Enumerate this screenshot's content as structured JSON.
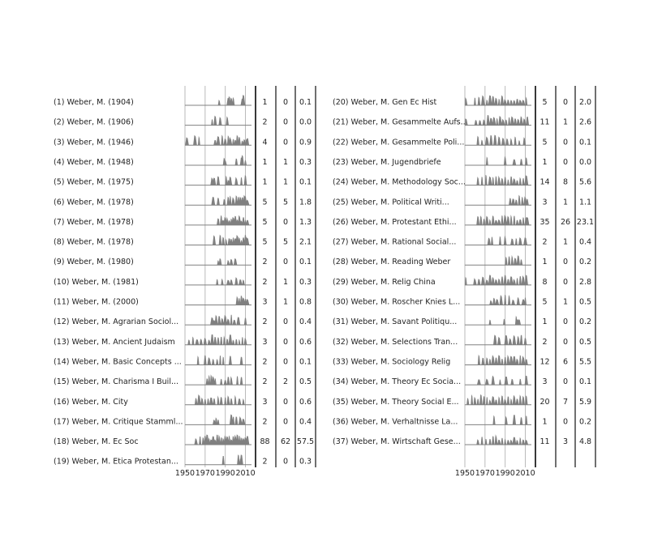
{
  "chart_data": {
    "type": "area",
    "x_ticks": [
      1950,
      1970,
      1990,
      2010
    ],
    "x_range": [
      1950,
      2016
    ],
    "colors": {
      "area": "#808080",
      "line": "#808080",
      "grid": "#b3b3b3",
      "frame": "#222222"
    },
    "panels": [
      {
        "rows": [
          {
            "label": "(1) Weber, M. (1904)",
            "c1": "1",
            "c2": "0",
            "c3": "0.1",
            "events": [
              1984,
              1993,
              1994,
              1996,
              1998,
              2007,
              2008
            ]
          },
          {
            "label": "(2) Weber, M. (1906)",
            "c1": "2",
            "c2": "0",
            "c3": "0.0",
            "events": [
              1977,
              1980,
              1985,
              1992
            ]
          },
          {
            "label": "(3) Weber, M. (1946)",
            "c1": "4",
            "c2": "0",
            "c3": "0.9",
            "events": [
              1952,
              1960,
              1964,
              1980,
              1983,
              1987,
              1990,
              1993,
              1995,
              1998,
              2000,
              2002,
              2004,
              2007,
              2009,
              2011,
              2012
            ]
          },
          {
            "label": "(4) Weber, M. (1948)",
            "c1": "1",
            "c2": "1",
            "c3": "0.3",
            "events": [
              1989,
              1990,
              2001,
              2006,
              2007,
              2010
            ]
          },
          {
            "label": "(5) Weber, M. (1975)",
            "c1": "1",
            "c2": "1",
            "c3": "0.1",
            "events": [
              1977,
              1979,
              1983,
              1991,
              1993,
              1995,
              2001,
              2006,
              2010
            ]
          },
          {
            "label": "(6) Weber, M. (1978)",
            "c1": "5",
            "c2": "5",
            "c3": "1.8",
            "events": [
              1978,
              1983,
              1989,
              1993,
              1995,
              1998,
              2001,
              2003,
              2005,
              2007,
              2009,
              2010,
              2012
            ]
          },
          {
            "label": "(7) Weber, M. (1978)",
            "c1": "5",
            "c2": "0",
            "c3": "1.3",
            "events": [
              1983,
              1986,
              1988,
              1990,
              1992,
              1994,
              1996,
              1998,
              2000,
              2002,
              2004,
              2006,
              2008,
              2010,
              2012
            ]
          },
          {
            "label": "(8) Weber, M. (1978)",
            "c1": "5",
            "c2": "5",
            "c3": "2.1",
            "events": [
              1979,
              1985,
              1988,
              1991,
              1994,
              1996,
              1998,
              2000,
              2002,
              2004,
              2006,
              2008,
              2010,
              2011,
              2012
            ]
          },
          {
            "label": "(9) Weber, M. (1980)",
            "c1": "2",
            "c2": "0",
            "c3": "0.1",
            "events": [
              1983,
              1985,
              1993,
              1996,
              2000
            ]
          },
          {
            "label": "(10) Weber, M. (1981)",
            "c1": "2",
            "c2": "1",
            "c3": "0.3",
            "events": [
              1982,
              1987,
              1993,
              1996,
              2001,
              2005,
              2008
            ]
          },
          {
            "label": "(11) Weber, M. (2000)",
            "c1": "3",
            "c2": "1",
            "c3": "0.8",
            "events": [
              2002,
              2004,
              2006,
              2008,
              2010,
              2012
            ]
          },
          {
            "label": "(12) Weber, M. Agrarian Sociol...",
            "c1": "2",
            "c2": "0",
            "c3": "0.4",
            "events": [
              1977,
              1979,
              1981,
              1984,
              1987,
              1990,
              1993,
              1996,
              1999,
              2003,
              2010
            ]
          },
          {
            "label": "(13) Weber, M. Ancient Judaism",
            "c1": "3",
            "c2": "0",
            "c3": "0.6",
            "events": [
              1954,
              1958,
              1962,
              1966,
              1970,
              1974,
              1977,
              1980,
              1983,
              1986,
              1989,
              1992,
              1995,
              1998,
              2001,
              2004,
              2007,
              2010
            ]
          },
          {
            "label": "(14) Weber, M. Basic Concepts ...",
            "c1": "2",
            "c2": "0",
            "c3": "0.1",
            "events": [
              1963,
              1970,
              1974,
              1978,
              1982,
              1985,
              1988,
              1995,
              2006
            ]
          },
          {
            "label": "(15) Weber, M. Charisma I Buil...",
            "c1": "2",
            "c2": "2",
            "c3": "0.5",
            "events": [
              1972,
              1974,
              1976,
              1978,
              1980,
              1986,
              1990,
              1993,
              1996,
              2002,
              2006
            ]
          },
          {
            "label": "(16) Weber, M. City",
            "c1": "3",
            "c2": "0",
            "c3": "0.6",
            "events": [
              1961,
              1964,
              1967,
              1970,
              1973,
              1976,
              1979,
              1983,
              1986,
              1990,
              1993,
              1996,
              2000,
              2004,
              2008
            ]
          },
          {
            "label": "(17) Weber, M. Critique Stamml...",
            "c1": "2",
            "c2": "0",
            "c3": "0.4",
            "events": [
              1979,
              1981,
              1983,
              1996,
              1998,
              2001,
              2005,
              2008
            ]
          },
          {
            "label": "(18) Weber, M. Ec Soc",
            "c1": "88",
            "c2": "62",
            "c3": "57.5",
            "events": [
              1961,
              1965,
              1968,
              1970,
              1972,
              1974,
              1976,
              1978,
              1980,
              1982,
              1984,
              1986,
              1988,
              1990,
              1992,
              1994,
              1996,
              1998,
              2000,
              2002,
              2004,
              2006,
              2008,
              2010,
              2012
            ]
          },
          {
            "label": "(19) Weber, M. Etica Protestan...",
            "c1": "2",
            "c2": "0",
            "c3": "0.3",
            "events": [
              1988,
              2003,
              2005,
              2006
            ]
          }
        ]
      },
      {
        "rows": [
          {
            "label": "(20) Weber, M. Gen Ec Hist",
            "c1": "5",
            "c2": "0",
            "c3": "2.0",
            "events": [
              1951,
              1960,
              1964,
              1968,
              1972,
              1975,
              1978,
              1981,
              1984,
              1987,
              1990,
              1993,
              1996,
              1999,
              2002,
              2005,
              2008,
              2011
            ]
          },
          {
            "label": "(21) Weber, M. Gesammelte Aufs...",
            "c1": "11",
            "c2": "1",
            "c3": "2.6",
            "events": [
              1951,
              1961,
              1965,
              1969,
              1973,
              1976,
              1979,
              1982,
              1985,
              1988,
              1991,
              1994,
              1997,
              2000,
              2003,
              2006,
              2009,
              2012
            ]
          },
          {
            "label": "(22) Weber, M. Gesammelte Poli...",
            "c1": "5",
            "c2": "0",
            "c3": "0.1",
            "events": [
              1963,
              1967,
              1972,
              1976,
              1980,
              1984,
              1988,
              1992,
              1996,
              2000,
              2004,
              2009
            ]
          },
          {
            "label": "(23) Weber, M. Jugendbriefe",
            "c1": "1",
            "c2": "0",
            "c3": "0.0",
            "events": [
              1972,
              1990,
              1999,
              2006,
              2011
            ]
          },
          {
            "label": "(24) Weber, M. Methodology Soc...",
            "c1": "14",
            "c2": "8",
            "c3": "5.6",
            "events": [
              1963,
              1967,
              1971,
              1975,
              1978,
              1981,
              1984,
              1987,
              1990,
              1993,
              1996,
              1999,
              2002,
              2005,
              2008,
              2011
            ]
          },
          {
            "label": "(25) Weber, M. Political Writi...",
            "c1": "3",
            "c2": "1",
            "c3": "1.1",
            "events": [
              1995,
              1998,
              2001,
              2004,
              2007,
              2010,
              2012
            ]
          },
          {
            "label": "(26) Weber, M. Protestant Ethi...",
            "c1": "35",
            "c2": "26",
            "c3": "23.1",
            "events": [
              1963,
              1966,
              1969,
              1972,
              1975,
              1978,
              1981,
              1984,
              1987,
              1990,
              1993,
              1996,
              1999,
              2002,
              2005,
              2008,
              2011,
              2012
            ]
          },
          {
            "label": "(27) Weber, M. Rational Social...",
            "c1": "2",
            "c2": "1",
            "c3": "0.4",
            "events": [
              1974,
              1977,
              1985,
              1990,
              1997,
              2001,
              2005,
              2010
            ]
          },
          {
            "label": "(28) Weber, M. Reading Weber",
            "c1": "1",
            "c2": "0",
            "c3": "0.2",
            "events": [
              1991,
              1994,
              1997,
              2000,
              2003,
              2006
            ]
          },
          {
            "label": "(29) Weber, M. Relig China",
            "c1": "8",
            "c2": "0",
            "c3": "2.8",
            "events": [
              1951,
              1960,
              1964,
              1968,
              1972,
              1975,
              1978,
              1981,
              1984,
              1987,
              1990,
              1993,
              1996,
              1999,
              2002,
              2005,
              2008,
              2011
            ]
          },
          {
            "label": "(30) Weber, M. Roscher Knies L...",
            "c1": "5",
            "c2": "1",
            "c3": "0.5",
            "events": [
              1976,
              1979,
              1982,
              1986,
              1990,
              1994,
              1998,
              2003,
              2008,
              2010
            ]
          },
          {
            "label": "(31) Weber, M. Savant Politiqu...",
            "c1": "1",
            "c2": "0",
            "c3": "0.2",
            "events": [
              1975,
              1989,
              2001,
              2002,
              2003,
              2004
            ]
          },
          {
            "label": "(32) Weber, M. Selections Tran...",
            "c1": "2",
            "c2": "0",
            "c3": "0.5",
            "events": [
              1980,
              1984,
              1991,
              1995,
              1999,
              2003,
              2006,
              2010
            ]
          },
          {
            "label": "(33) Weber, M. Sociology Relig",
            "c1": "12",
            "c2": "6",
            "c3": "5.5",
            "events": [
              1964,
              1968,
              1972,
              1975,
              1978,
              1981,
              1984,
              1987,
              1990,
              1993,
              1996,
              1999,
              2002,
              2005,
              2008,
              2011
            ]
          },
          {
            "label": "(34) Weber, M. Theory Ec Socia...",
            "c1": "3",
            "c2": "0",
            "c3": "0.1",
            "events": [
              1964,
              1972,
              1978,
              1985,
              1991,
              1997,
              2005,
              2011
            ]
          },
          {
            "label": "(35) Weber, M. Theory Social E...",
            "c1": "20",
            "c2": "7",
            "c3": "5.9",
            "events": [
              1953,
              1957,
              1960,
              1963,
              1966,
              1969,
              1972,
              1975,
              1978,
              1981,
              1984,
              1987,
              1990,
              1993,
              1996,
              1999,
              2002,
              2005,
              2008,
              2011
            ]
          },
          {
            "label": "(36) Weber, M. Verhaltnisse La...",
            "c1": "1",
            "c2": "0",
            "c3": "0.2",
            "events": [
              1979,
              1991,
              1999,
              2006,
              2011
            ]
          },
          {
            "label": "(37) Weber, M. Wirtschaft Gese...",
            "c1": "11",
            "c2": "3",
            "c3": "4.8",
            "events": [
              1963,
              1967,
              1971,
              1975,
              1978,
              1981,
              1984,
              1987,
              1990,
              1993,
              1996,
              1999,
              2002,
              2005,
              2008,
              2011
            ]
          }
        ]
      }
    ]
  }
}
